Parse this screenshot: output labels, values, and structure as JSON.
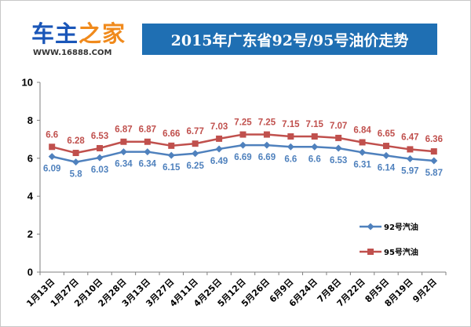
{
  "logo": {
    "brand_part1": "车主",
    "brand_part2": "之家",
    "url": "WWW.16888.COM"
  },
  "colors": {
    "title_bg": "#1f6fb3",
    "series_92": "#4f81bd",
    "series_95": "#c0504d",
    "logo_blue": "#1a56b8",
    "logo_orange": "#f08a1c"
  },
  "chart_data": {
    "type": "line",
    "title": "2015年广东省92号/95号油价走势",
    "xlabel": "",
    "ylabel": "",
    "ylim": [
      0,
      10
    ],
    "y_ticks": [
      0,
      2,
      4,
      6,
      8,
      10
    ],
    "grid": false,
    "legend_position": "right",
    "categories": [
      "1月13日",
      "1月27日",
      "2月10日",
      "2月28日",
      "3月13日",
      "3月27日",
      "4月11日",
      "4月25日",
      "5月12日",
      "5月26日",
      "6月9日",
      "6月24日",
      "7月8日",
      "7月22日",
      "8月5日",
      "8月19日",
      "9月2日"
    ],
    "series": [
      {
        "name": "92号汽油",
        "marker": "diamond",
        "values": [
          6.09,
          5.8,
          6.03,
          6.34,
          6.34,
          6.15,
          6.25,
          6.49,
          6.69,
          6.69,
          6.6,
          6.6,
          6.53,
          6.31,
          6.14,
          5.97,
          5.87
        ],
        "labels": [
          "6.09",
          "5.8",
          "6.03",
          "6.34",
          "6.34",
          "6.15",
          "6.25",
          "6.49",
          "6.69",
          "6.69",
          "6.6",
          "6.6",
          "6.53",
          "6.31",
          "6.14",
          "5.97",
          "5.87"
        ]
      },
      {
        "name": "95号汽油",
        "marker": "square",
        "values": [
          6.6,
          6.28,
          6.53,
          6.87,
          6.87,
          6.66,
          6.77,
          7.03,
          7.25,
          7.25,
          7.15,
          7.15,
          7.07,
          6.84,
          6.65,
          6.47,
          6.36
        ],
        "labels": [
          "6.6",
          "6.28",
          "6.53",
          "6.87",
          "6.87",
          "6.66",
          "6.77",
          "7.03",
          "7.25",
          "7.25",
          "7.15",
          "7.15",
          "7.07",
          "6.84",
          "6.65",
          "6.47",
          "6.36"
        ]
      }
    ]
  }
}
